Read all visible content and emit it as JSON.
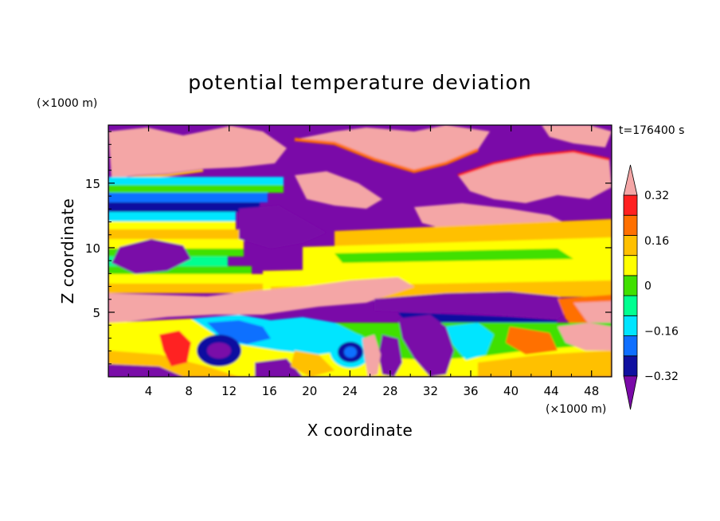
{
  "chart_data": {
    "type": "heatmap",
    "title": "potential temperature deviation",
    "xlabel": "X coordinate",
    "ylabel": "Z coordinate",
    "x_unit": "(×1000 m)",
    "y_unit": "(×1000 m)",
    "time_label": "t=176400 s",
    "xlim": [
      0,
      50
    ],
    "ylim": [
      0,
      19.5
    ],
    "x_ticks": [
      "4",
      "8",
      "12",
      "16",
      "20",
      "24",
      "28",
      "32",
      "36",
      "40",
      "44",
      "48"
    ],
    "x_tick_values": [
      4,
      8,
      12,
      16,
      20,
      24,
      28,
      32,
      36,
      40,
      44,
      48
    ],
    "y_ticks": [
      "5",
      "10",
      "15"
    ],
    "y_tick_values": [
      5,
      10,
      15
    ],
    "colorbar": {
      "levels": [
        -0.4,
        -0.32,
        -0.24,
        -0.16,
        -0.08,
        0,
        0.08,
        0.16,
        0.24,
        0.32,
        0.4
      ],
      "labeled_levels": [
        "0.32",
        "0.16",
        "0",
        "−0.16",
        "−0.32"
      ],
      "labeled_values": [
        0.32,
        0.16,
        0,
        -0.16,
        -0.32
      ],
      "colors_low_to_high": [
        "#7a0aa8",
        "#1010a0",
        "#0f6fff",
        "#00e5ff",
        "#00ff90",
        "#40e000",
        "#ffff00",
        "#ffc000",
        "#ff7000",
        "#ff2020",
        "#f4a6a6"
      ],
      "extend": "both"
    },
    "approx_field_bands": [
      {
        "z_range": [
          0,
          4.5
        ],
        "description_value": "mixed -0.4 to 0.4"
      },
      {
        "z_range": [
          4.5,
          6.5
        ],
        "description_value": -0.4
      },
      {
        "z_range": [
          7,
          11.5
        ],
        "description_value": 0.2
      },
      {
        "z_range": [
          11.5,
          14
        ],
        "description_value": -0.3
      },
      {
        "z_range": [
          14,
          19.5
        ],
        "description_value": "mixed -0.4 / 0.4"
      }
    ]
  }
}
